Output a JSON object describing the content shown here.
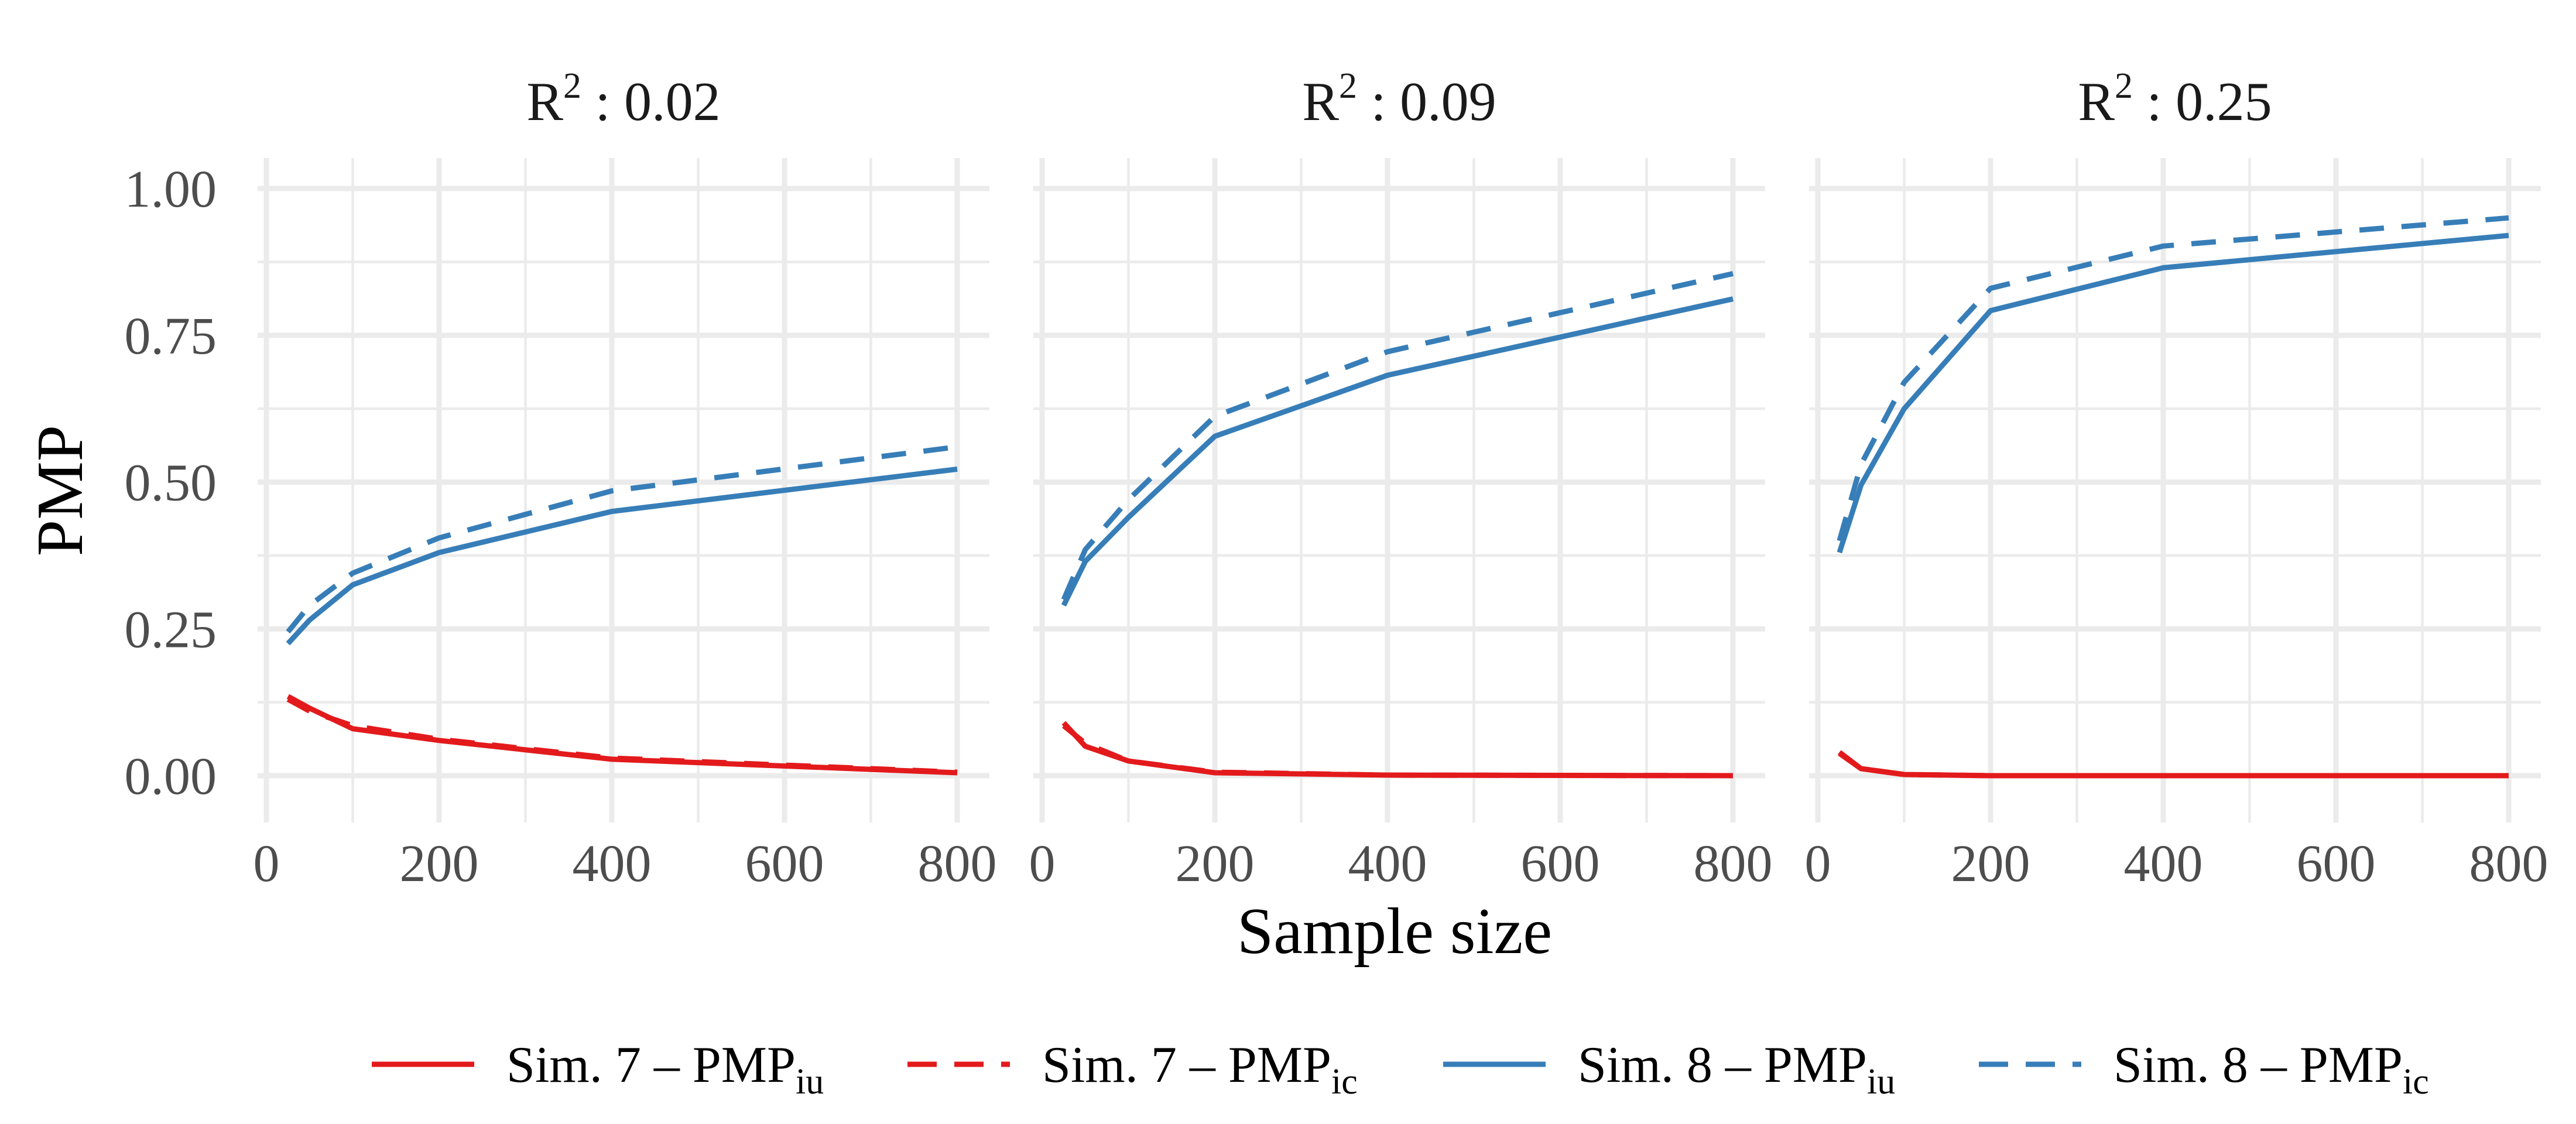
{
  "chart_data": {
    "type": "line",
    "facet_label": "R",
    "facet_sup": "2",
    "facet_sep": " : ",
    "xlabel": "Sample size",
    "ylabel": "PMP",
    "xlim": [
      0,
      800
    ],
    "ylim": [
      0,
      1
    ],
    "x_ticks": [
      "0",
      "200",
      "400",
      "600",
      "800"
    ],
    "y_ticks": [
      "0.00",
      "0.25",
      "0.50",
      "0.75",
      "1.00"
    ],
    "grid": true,
    "legend_position": "bottom",
    "legend": [
      {
        "label": "Sim. 7 – PMP",
        "sub": "iu",
        "color": "#e31a1c",
        "linetype": "solid"
      },
      {
        "label": "Sim. 7 – PMP",
        "sub": "ic",
        "color": "#e31a1c",
        "linetype": "dashed"
      },
      {
        "label": "Sim. 8 – PMP",
        "sub": "iu",
        "color": "#377eb8",
        "linetype": "solid"
      },
      {
        "label": "Sim. 8 – PMP",
        "sub": "ic",
        "color": "#377eb8",
        "linetype": "dashed"
      }
    ],
    "x": [
      25,
      50,
      100,
      200,
      400,
      800
    ],
    "panels": [
      {
        "r2": "0.02",
        "series": [
          {
            "values": [
              0.135,
              0.115,
              0.08,
              0.06,
              0.028,
              0.005
            ]
          },
          {
            "values": [
              0.13,
              0.11,
              0.085,
              0.062,
              0.03,
              0.006
            ]
          },
          {
            "values": [
              0.225,
              0.265,
              0.325,
              0.38,
              0.45,
              0.522
            ]
          },
          {
            "values": [
              0.245,
              0.29,
              0.345,
              0.405,
              0.485,
              0.56
            ]
          }
        ]
      },
      {
        "r2": "0.09",
        "series": [
          {
            "values": [
              0.09,
              0.05,
              0.025,
              0.005,
              0.001,
              0.0
            ]
          },
          {
            "values": [
              0.085,
              0.055,
              0.025,
              0.006,
              0.001,
              0.0
            ]
          },
          {
            "values": [
              0.29,
              0.365,
              0.44,
              0.578,
              0.682,
              0.812
            ]
          },
          {
            "values": [
              0.3,
              0.385,
              0.47,
              0.612,
              0.722,
              0.855
            ]
          }
        ]
      },
      {
        "r2": "0.25",
        "series": [
          {
            "values": [
              0.04,
              0.012,
              0.002,
              0.0,
              0.0,
              0.0
            ]
          },
          {
            "values": [
              0.038,
              0.012,
              0.002,
              0.0,
              0.0,
              0.0
            ]
          },
          {
            "values": [
              0.38,
              0.495,
              0.625,
              0.792,
              0.865,
              0.92
            ]
          },
          {
            "values": [
              0.4,
              0.53,
              0.67,
              0.83,
              0.902,
              0.95
            ]
          }
        ]
      }
    ]
  }
}
